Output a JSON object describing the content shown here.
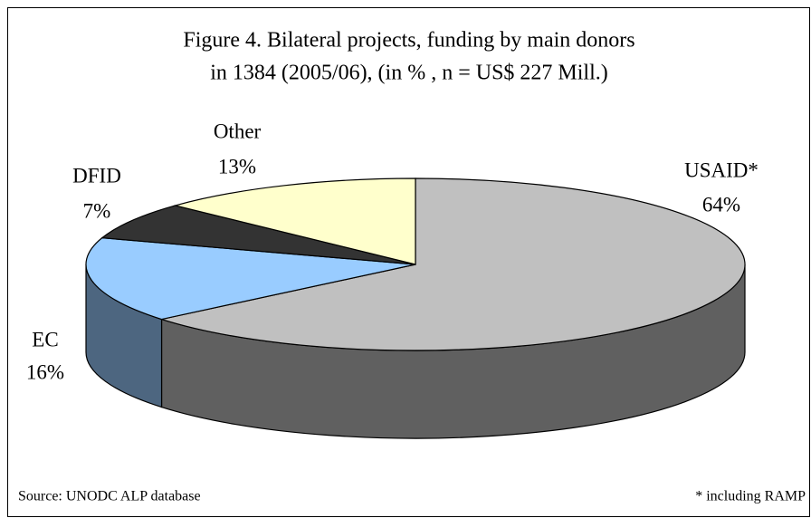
{
  "chart_data": {
    "type": "pie3d",
    "title": "Figure 4. Bilateral projects, funding by main donors",
    "subtitle": "in 1384 (2005/06), (in % , n = US$ 227 Mill.)",
    "categories": [
      "USAID*",
      "EC",
      "DFID",
      "Other"
    ],
    "values": [
      64,
      16,
      7,
      13
    ],
    "value_labels": [
      "64%",
      "16%",
      "7%",
      "13%"
    ],
    "colors": [
      "#c0c0c0",
      "#99ccff",
      "#333333",
      "#ffffcc"
    ],
    "source": "Source: UNODC ALP database",
    "note": "* including RAMP"
  }
}
